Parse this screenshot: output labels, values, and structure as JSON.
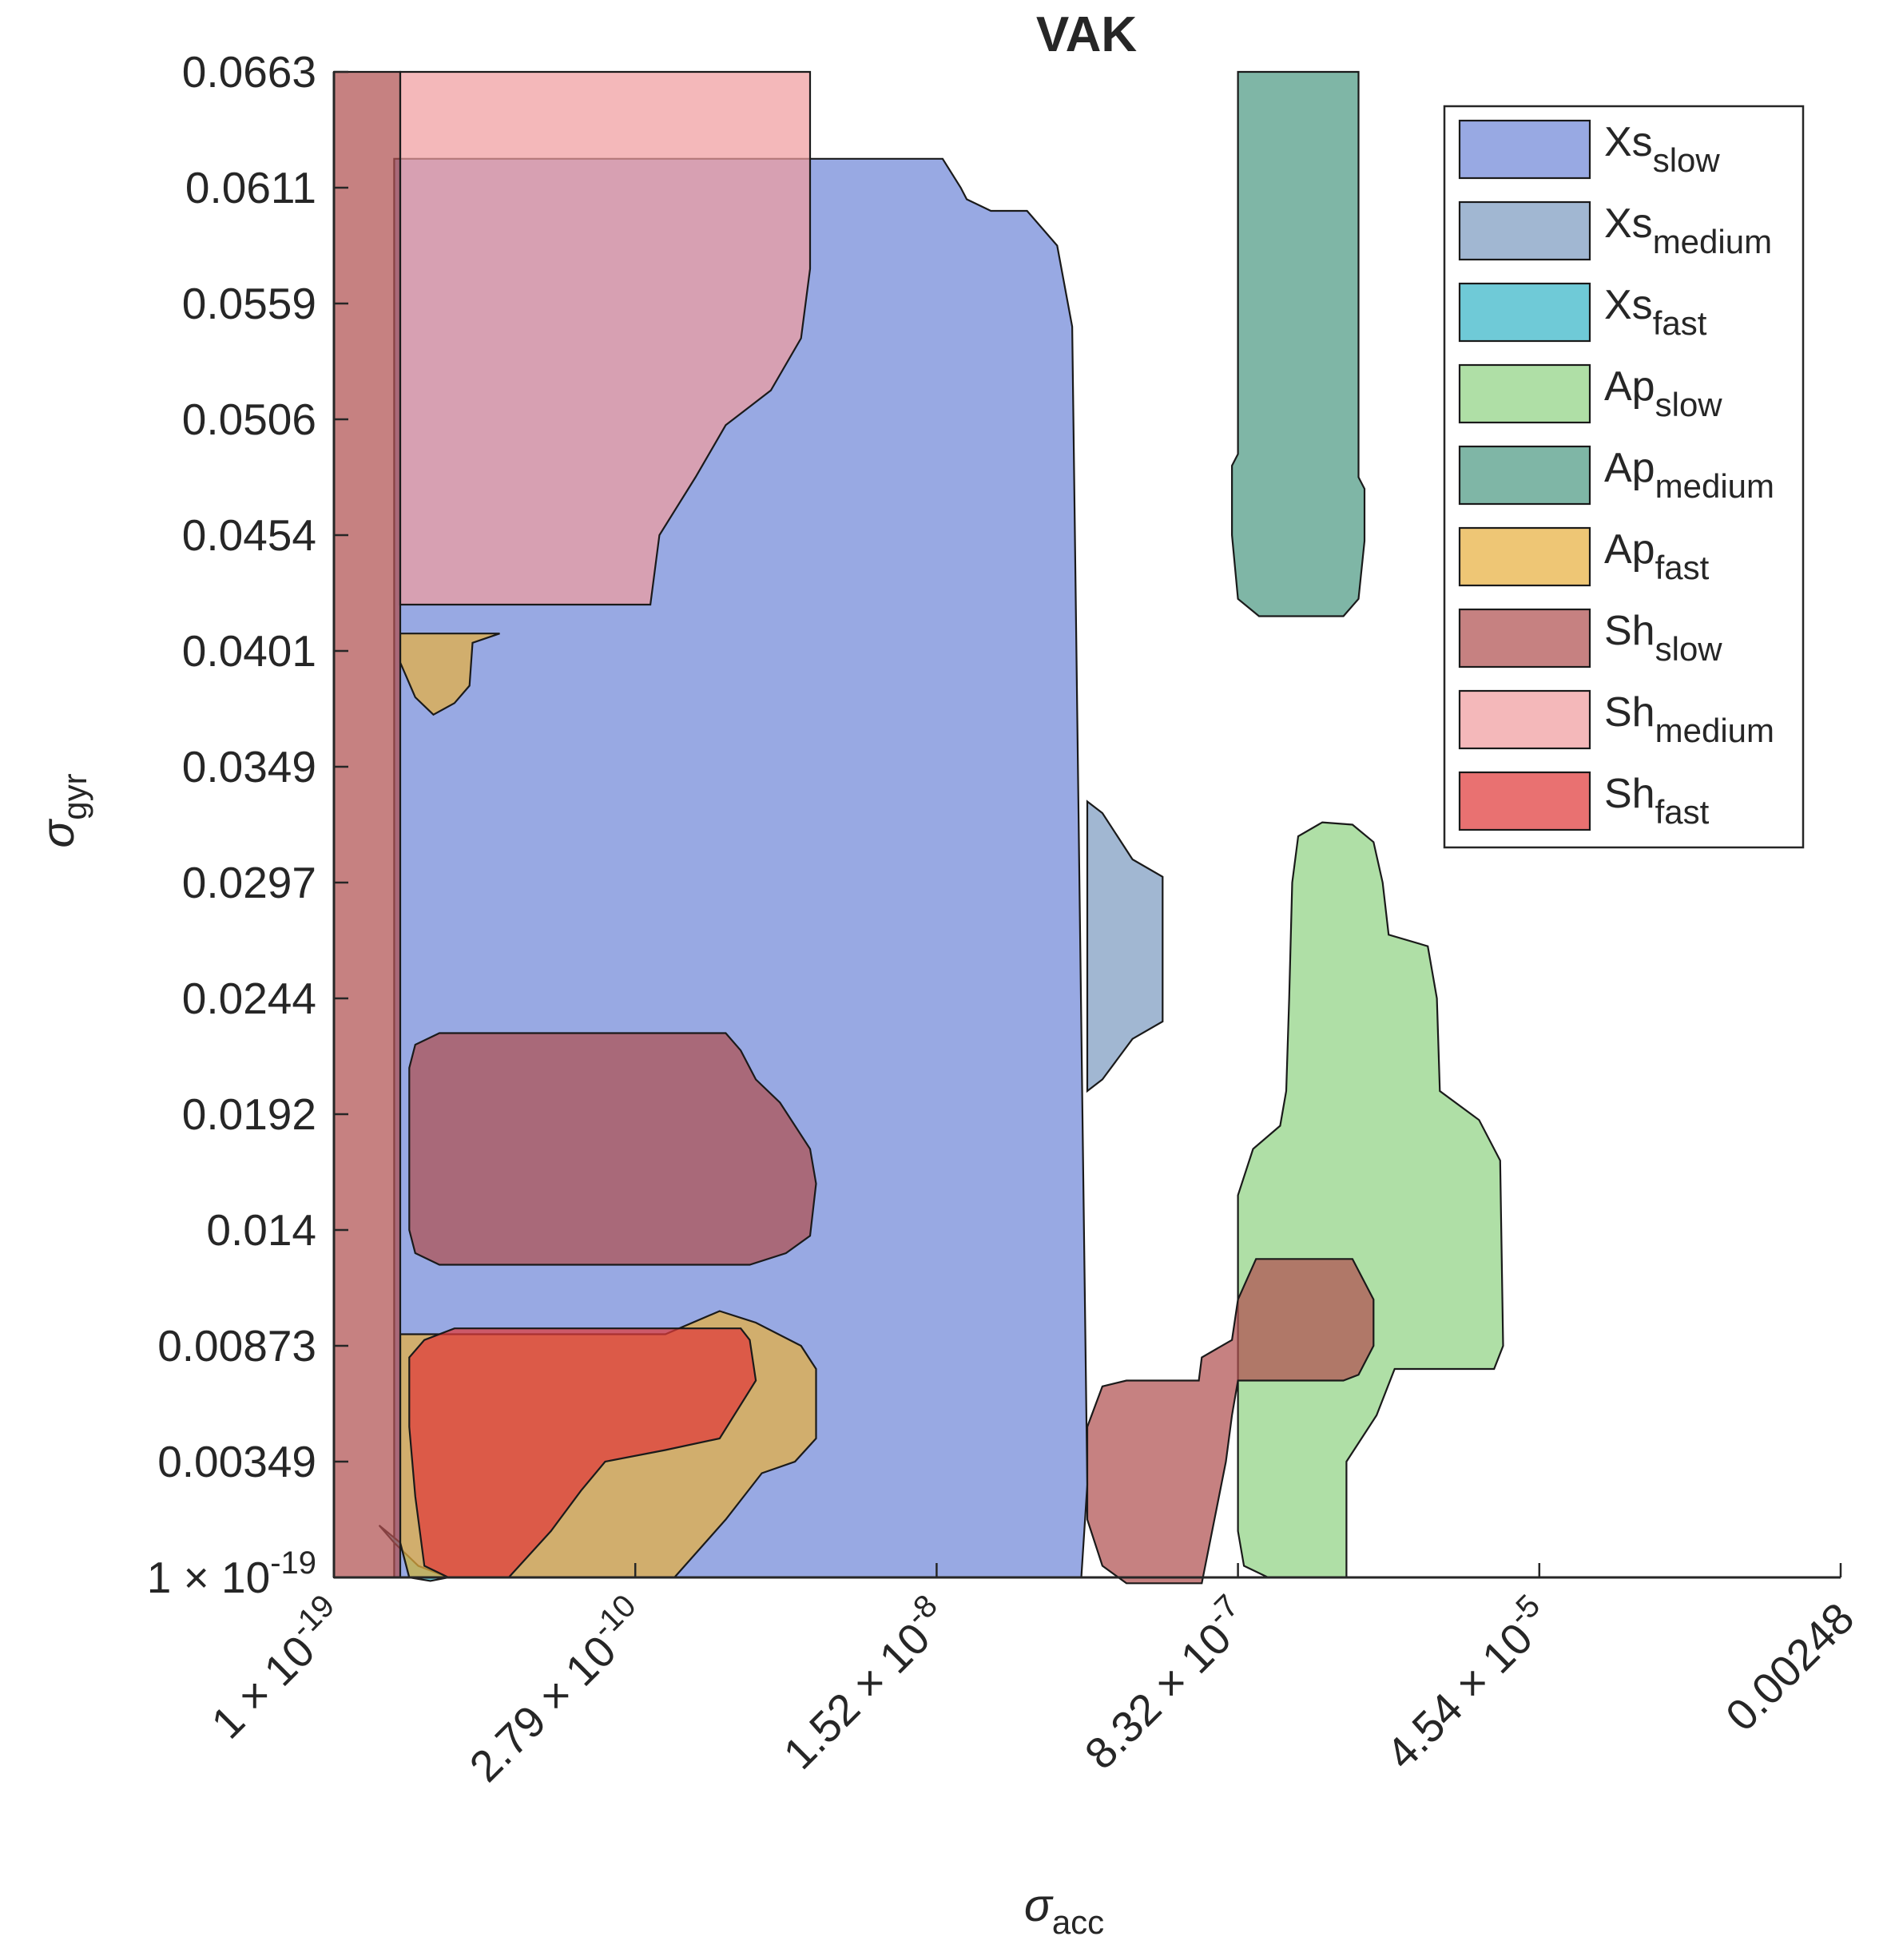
{
  "chart_data": {
    "type": "area",
    "title": "VAK",
    "xlabel": {
      "symbol": "σ",
      "sub": "acc"
    },
    "ylabel": {
      "symbol": "σ",
      "sub": "gyr"
    },
    "x_ticks": [
      {
        "base": "1 × 10",
        "exp": "-19"
      },
      {
        "base": "2.79 × 10",
        "exp": "-10"
      },
      {
        "base": "1.52 × 10",
        "exp": "-8"
      },
      {
        "base": "8.32 × 10",
        "exp": "-7"
      },
      {
        "base": "4.54 × 10",
        "exp": "-5"
      },
      {
        "base": "0.00248",
        "exp": ""
      }
    ],
    "y_ticks": [
      {
        "base": "0.0663",
        "exp": ""
      },
      {
        "base": "0.0611",
        "exp": ""
      },
      {
        "base": "0.0559",
        "exp": ""
      },
      {
        "base": "0.0506",
        "exp": ""
      },
      {
        "base": "0.0454",
        "exp": ""
      },
      {
        "base": "0.0401",
        "exp": ""
      },
      {
        "base": "0.0349",
        "exp": ""
      },
      {
        "base": "0.0297",
        "exp": ""
      },
      {
        "base": "0.0244",
        "exp": ""
      },
      {
        "base": "0.0192",
        "exp": ""
      },
      {
        "base": "0.014",
        "exp": ""
      },
      {
        "base": "0.00873",
        "exp": ""
      },
      {
        "base": "0.00349",
        "exp": ""
      },
      {
        "base": "1 × 10",
        "exp": "-19"
      }
    ],
    "x_index_range": [
      0,
      5
    ],
    "y_index_range": [
      0,
      13
    ],
    "legend_position": "top-right",
    "series": [
      {
        "key": "xs_slow",
        "name": "Xs",
        "sub": "slow",
        "color": "#7088d8",
        "regions": [
          [
            [
              0.2,
              0.75
            ],
            [
              2.02,
              0.75
            ],
            [
              2.08,
              1.0
            ],
            [
              2.1,
              1.1
            ],
            [
              2.18,
              1.2
            ],
            [
              2.3,
              1.2
            ],
            [
              2.4,
              1.5
            ],
            [
              2.45,
              2.2
            ],
            [
              2.5,
              12.2
            ],
            [
              2.48,
              13.0
            ],
            [
              0.2,
              13.0
            ]
          ]
        ]
      },
      {
        "key": "xs_medium",
        "name": "Xs",
        "sub": "medium",
        "color": "#7d9bc0",
        "regions": [
          [
            [
              2.5,
              6.3
            ],
            [
              2.55,
              6.4
            ],
            [
              2.65,
              6.8
            ],
            [
              2.75,
              6.95
            ],
            [
              2.75,
              8.2
            ],
            [
              2.65,
              8.35
            ],
            [
              2.55,
              8.7
            ],
            [
              2.5,
              8.8
            ]
          ]
        ]
      },
      {
        "key": "xs_fast",
        "name": "Xs",
        "sub": "fast",
        "color": "#38b6c8",
        "regions": [
          [
            [
              0.15,
              12.55
            ],
            [
              0.22,
              12.7
            ],
            [
              0.25,
              13.0
            ],
            [
              0.32,
              13.03
            ],
            [
              0.38,
              13.0
            ],
            [
              0.28,
              12.9
            ],
            [
              0.2,
              12.7
            ]
          ]
        ]
      },
      {
        "key": "ap_slow",
        "name": "Ap",
        "sub": "slow",
        "color": "#90d284",
        "regions": [
          [
            [
              3.18,
              7.0
            ],
            [
              3.2,
              6.6
            ],
            [
              3.28,
              6.48
            ],
            [
              3.38,
              6.5
            ],
            [
              3.45,
              6.65
            ],
            [
              3.48,
              7.0
            ],
            [
              3.5,
              7.45
            ],
            [
              3.63,
              7.55
            ],
            [
              3.66,
              8.0
            ],
            [
              3.67,
              8.8
            ],
            [
              3.8,
              9.05
            ],
            [
              3.87,
              9.4
            ],
            [
              3.88,
              11.0
            ],
            [
              3.85,
              11.2
            ],
            [
              3.7,
              11.2
            ],
            [
              3.52,
              11.2
            ],
            [
              3.46,
              11.6
            ],
            [
              3.36,
              12.0
            ],
            [
              3.36,
              13.0
            ],
            [
              3.31,
              13.0
            ],
            [
              3.1,
              13.0
            ],
            [
              3.02,
              12.9
            ],
            [
              3.0,
              12.6
            ],
            [
              3.0,
              9.7
            ],
            [
              3.05,
              9.3
            ],
            [
              3.14,
              9.1
            ],
            [
              3.16,
              8.8
            ],
            [
              3.17,
              8.0
            ]
          ]
        ]
      },
      {
        "key": "ap_medium",
        "name": "Ap",
        "sub": "medium",
        "color": "#4e9a84",
        "regions": [
          [
            [
              3.0,
              0.0
            ],
            [
              3.4,
              0.0
            ],
            [
              3.4,
              3.5
            ],
            [
              3.42,
              3.6
            ],
            [
              3.42,
              4.05
            ],
            [
              3.4,
              4.55
            ],
            [
              3.35,
              4.7
            ],
            [
              3.07,
              4.7
            ],
            [
              3.0,
              4.55
            ],
            [
              2.98,
              4.0
            ],
            [
              2.98,
              3.4
            ],
            [
              3.0,
              3.3
            ]
          ]
        ]
      },
      {
        "key": "ap_fast",
        "name": "Ap",
        "sub": "fast",
        "color": "#e8b040",
        "regions": [
          [
            [
              0.22,
              4.85
            ],
            [
              0.55,
              4.85
            ],
            [
              0.46,
              4.93
            ],
            [
              0.45,
              5.3
            ],
            [
              0.4,
              5.45
            ],
            [
              0.33,
              5.55
            ],
            [
              0.27,
              5.4
            ],
            [
              0.22,
              5.1
            ]
          ],
          [
            [
              0.22,
              10.9
            ],
            [
              0.4,
              10.9
            ],
            [
              0.6,
              10.9
            ],
            [
              1.1,
              10.9
            ],
            [
              1.28,
              10.7
            ],
            [
              1.4,
              10.8
            ],
            [
              1.55,
              11.0
            ],
            [
              1.6,
              11.2
            ],
            [
              1.6,
              11.8
            ],
            [
              1.53,
              12.0
            ],
            [
              1.42,
              12.1
            ],
            [
              1.3,
              12.5
            ],
            [
              1.13,
              13.0
            ],
            [
              0.6,
              13.0
            ],
            [
              0.25,
              13.0
            ],
            [
              0.22,
              12.7
            ]
          ]
        ]
      },
      {
        "key": "sh_slow",
        "name": "Sh",
        "sub": "slow",
        "color": "#b05050",
        "regions": [
          [
            [
              0.0,
              0.0
            ],
            [
              0.22,
              0.0
            ],
            [
              0.22,
              13.0
            ],
            [
              0.0,
              13.0
            ]
          ],
          [
            [
              0.25,
              9.0
            ],
            [
              0.25,
              8.6
            ],
            [
              0.27,
              8.4
            ],
            [
              0.35,
              8.3
            ],
            [
              1.3,
              8.3
            ],
            [
              1.35,
              8.45
            ],
            [
              1.4,
              8.7
            ],
            [
              1.48,
              8.9
            ],
            [
              1.58,
              9.3
            ],
            [
              1.6,
              9.6
            ],
            [
              1.58,
              10.05
            ],
            [
              1.5,
              10.2
            ],
            [
              1.38,
              10.3
            ],
            [
              0.35,
              10.3
            ],
            [
              0.27,
              10.2
            ],
            [
              0.25,
              10.0
            ]
          ],
          [
            [
              2.5,
              11.7
            ],
            [
              2.55,
              11.35
            ],
            [
              2.63,
              11.3
            ],
            [
              2.87,
              11.3
            ],
            [
              2.88,
              11.1
            ],
            [
              2.98,
              10.95
            ],
            [
              3.0,
              10.6
            ],
            [
              3.06,
              10.25
            ],
            [
              3.38,
              10.25
            ],
            [
              3.45,
              10.6
            ],
            [
              3.45,
              11.0
            ],
            [
              3.4,
              11.25
            ],
            [
              3.35,
              11.3
            ],
            [
              3.0,
              11.3
            ],
            [
              2.98,
              11.6
            ],
            [
              2.96,
              12.0
            ],
            [
              2.88,
              13.05
            ],
            [
              2.63,
              13.05
            ],
            [
              2.55,
              12.9
            ],
            [
              2.5,
              12.5
            ]
          ]
        ]
      },
      {
        "key": "sh_medium",
        "name": "Sh",
        "sub": "medium",
        "color": "#f09ca0",
        "regions": [
          [
            [
              0.22,
              0.0
            ],
            [
              1.58,
              0.0
            ],
            [
              1.58,
              1.7
            ],
            [
              1.55,
              2.3
            ],
            [
              1.45,
              2.75
            ],
            [
              1.3,
              3.05
            ],
            [
              1.2,
              3.5
            ],
            [
              1.08,
              4.0
            ],
            [
              1.05,
              4.6
            ],
            [
              0.22,
              4.6
            ]
          ]
        ]
      },
      {
        "key": "sh_fast",
        "name": "Sh",
        "sub": "fast",
        "color": "#e03a3a",
        "regions": [
          [
            [
              0.25,
              11.7
            ],
            [
              0.25,
              11.1
            ],
            [
              0.3,
              10.95
            ],
            [
              0.4,
              10.85
            ],
            [
              1.35,
              10.85
            ],
            [
              1.38,
              10.95
            ],
            [
              1.4,
              11.3
            ],
            [
              1.28,
              11.8
            ],
            [
              1.1,
              11.9
            ],
            [
              0.9,
              12.0
            ],
            [
              0.82,
              12.25
            ],
            [
              0.72,
              12.6
            ],
            [
              0.58,
              13.0
            ],
            [
              0.38,
              13.0
            ],
            [
              0.3,
              12.9
            ],
            [
              0.27,
              12.3
            ]
          ]
        ]
      }
    ]
  }
}
